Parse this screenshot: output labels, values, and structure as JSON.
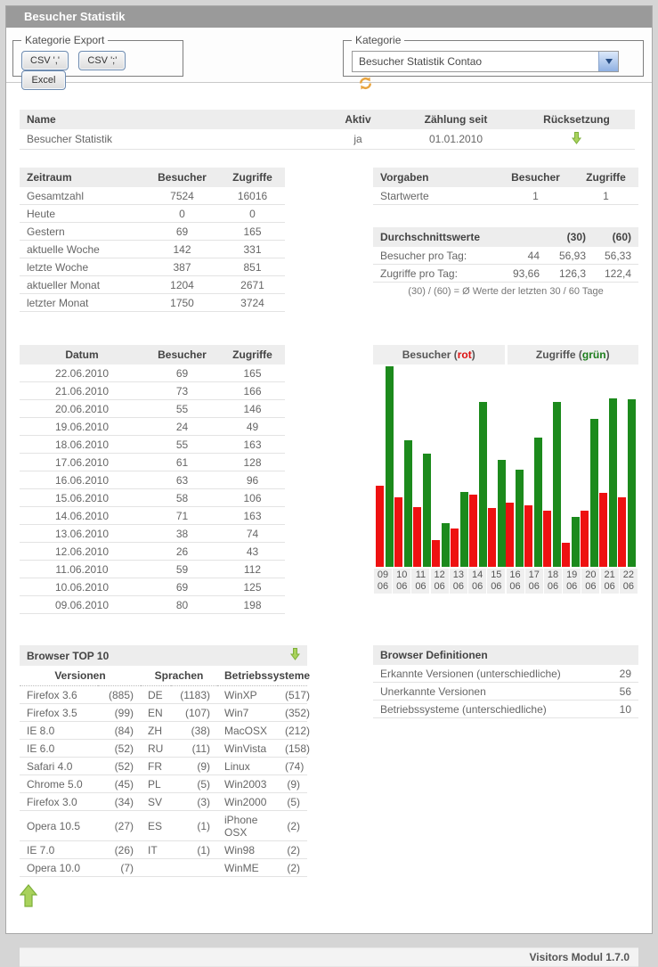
{
  "titlebar": {
    "title": "Besucher Statistik"
  },
  "toolbar": {
    "export_legend": "Kategorie Export",
    "buttons": {
      "csv_comma": "CSV ','",
      "csv_semicolon": "CSV ';'",
      "excel": "Excel"
    },
    "kategorie_legend": "Kategorie",
    "kategorie_selected": "Besucher Statistik Contao"
  },
  "name_table": {
    "headers": {
      "name": "Name",
      "aktiv": "Aktiv",
      "zaehlung": "Zählung seit",
      "ruecksetzung": "Rücksetzung"
    },
    "row": {
      "name": "Besucher Statistik",
      "aktiv": "ja",
      "zaehlung": "01.01.2010"
    }
  },
  "zeitraum_table": {
    "headers": [
      "Zeitraum",
      "Besucher",
      "Zugriffe"
    ],
    "rows": [
      [
        "Gesamtzahl",
        "7524",
        "16016"
      ],
      [
        "Heute",
        "0",
        "0"
      ],
      [
        "Gestern",
        "69",
        "165"
      ],
      [
        "aktuelle Woche",
        "142",
        "331"
      ],
      [
        "letzte Woche",
        "387",
        "851"
      ],
      [
        "aktueller Monat",
        "1204",
        "2671"
      ],
      [
        "letzter Monat",
        "1750",
        "3724"
      ]
    ]
  },
  "vorgaben_table": {
    "headers": [
      "Vorgaben",
      "Besucher",
      "Zugriffe"
    ],
    "rows": [
      [
        "Startwerte",
        "1",
        "1"
      ]
    ]
  },
  "durchschnitt_table": {
    "headers": {
      "title": "Durchschnittswerte",
      "d30": "(30)",
      "d60": "(60)"
    },
    "rows": [
      [
        "Besucher pro Tag:",
        "44",
        "56,93",
        "56,33"
      ],
      [
        "Zugriffe pro Tag:",
        "93,66",
        "126,3",
        "122,4"
      ]
    ],
    "note": "(30) / (60) = Ø Werte der letzten 30 / 60 Tage"
  },
  "datum_table": {
    "headers": [
      "Datum",
      "Besucher",
      "Zugriffe"
    ],
    "rows": [
      [
        "22.06.2010",
        "69",
        "165"
      ],
      [
        "21.06.2010",
        "73",
        "166"
      ],
      [
        "20.06.2010",
        "55",
        "146"
      ],
      [
        "19.06.2010",
        "24",
        "49"
      ],
      [
        "18.06.2010",
        "55",
        "163"
      ],
      [
        "17.06.2010",
        "61",
        "128"
      ],
      [
        "16.06.2010",
        "63",
        "96"
      ],
      [
        "15.06.2010",
        "58",
        "106"
      ],
      [
        "14.06.2010",
        "71",
        "163"
      ],
      [
        "13.06.2010",
        "38",
        "74"
      ],
      [
        "12.06.2010",
        "26",
        "43"
      ],
      [
        "11.06.2010",
        "59",
        "112"
      ],
      [
        "10.06.2010",
        "69",
        "125"
      ],
      [
        "09.06.2010",
        "80",
        "198"
      ]
    ]
  },
  "chart_data": {
    "type": "bar",
    "legend": {
      "left_prefix": "Besucher (",
      "left_word": "rot",
      "left_close": ")",
      "right_prefix": "Zugriffe (",
      "right_word": "grün",
      "right_close": ")"
    },
    "categories": [
      "09.06",
      "10.06",
      "11.06",
      "12.06",
      "13.06",
      "14.06",
      "15.06",
      "16.06",
      "17.06",
      "18.06",
      "19.06",
      "20.06",
      "21.06",
      "22.06"
    ],
    "series": [
      {
        "name": "Besucher",
        "color": "#ee1111",
        "values": [
          80,
          69,
          59,
          26,
          38,
          71,
          58,
          63,
          61,
          55,
          24,
          55,
          73,
          69
        ]
      },
      {
        "name": "Zugriffe",
        "color": "#1c8a1c",
        "values": [
          198,
          125,
          112,
          43,
          74,
          163,
          106,
          96,
          128,
          163,
          49,
          146,
          166,
          165
        ]
      }
    ],
    "ylim": [
      0,
      198
    ],
    "grid": false,
    "legend_position": "top"
  },
  "browser_table": {
    "title": "Browser TOP 10",
    "headers": [
      "Versionen",
      "Sprachen",
      "Betriebssysteme"
    ],
    "rows": [
      [
        "Firefox 3.6",
        "(885)",
        "DE",
        "(1183)",
        "WinXP",
        "(517)"
      ],
      [
        "Firefox 3.5",
        "(99)",
        "EN",
        "(107)",
        "Win7",
        "(352)"
      ],
      [
        "IE 8.0",
        "(84)",
        "ZH",
        "(38)",
        "MacOSX",
        "(212)"
      ],
      [
        "IE 6.0",
        "(52)",
        "RU",
        "(11)",
        "WinVista",
        "(158)"
      ],
      [
        "Safari 4.0",
        "(52)",
        "FR",
        "(9)",
        "Linux",
        "(74)"
      ],
      [
        "Chrome 5.0",
        "(45)",
        "PL",
        "(5)",
        "Win2003",
        "(9)"
      ],
      [
        "Firefox 3.0",
        "(34)",
        "SV",
        "(3)",
        "Win2000",
        "(5)"
      ],
      [
        "Opera 10.5",
        "(27)",
        "ES",
        "(1)",
        "iPhone OSX",
        "(2)"
      ],
      [
        "IE 7.0",
        "(26)",
        "IT",
        "(1)",
        "Win98",
        "(2)"
      ],
      [
        "Opera 10.0",
        "(7)",
        "",
        "",
        "WinME",
        "(2)"
      ]
    ]
  },
  "definitions_table": {
    "title": "Browser Definitionen",
    "rows": [
      [
        "Erkannte Versionen (unterschiedliche)",
        "29"
      ],
      [
        "Unerkannte Versionen",
        "56"
      ],
      [
        "Betriebssysteme (unterschiedliche)",
        "10"
      ]
    ]
  },
  "footer": {
    "version": "Visitors Modul 1.7.0"
  },
  "colors": {
    "besucher_bar": "#ee1111",
    "zugriffe_bar": "#1c8a1c",
    "arrow_green_fill": "#a9d25c",
    "arrow_green_stroke": "#7daf3a",
    "refresh_orange": "#e8a33d",
    "titlebar_bg": "#9a9a9a"
  }
}
